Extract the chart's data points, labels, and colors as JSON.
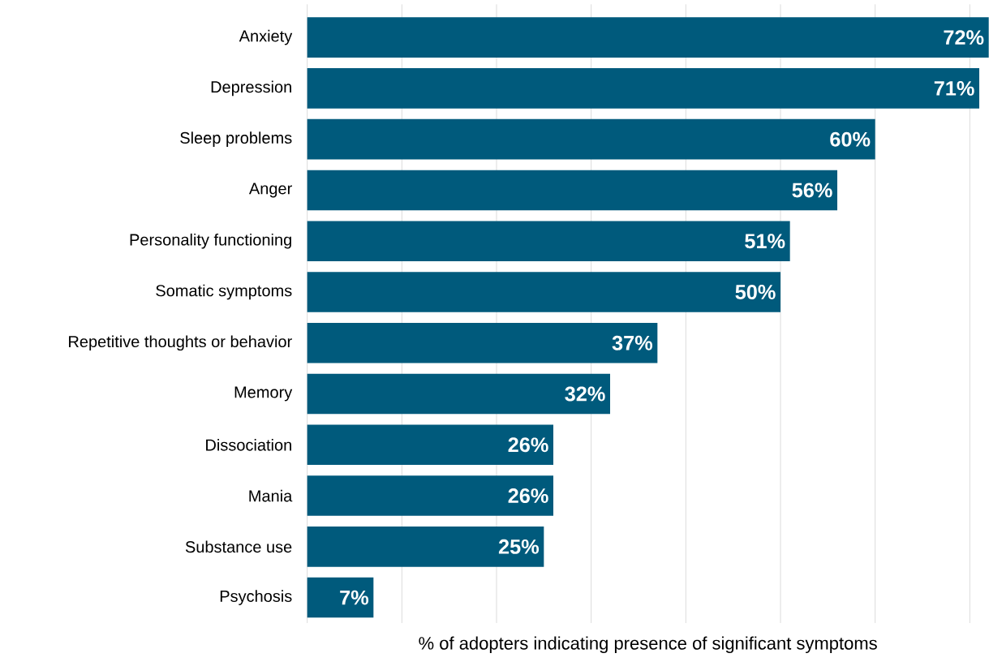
{
  "chart_data": {
    "type": "bar",
    "orientation": "horizontal",
    "xlabel": "% of adopters indicating presence of significant symptoms",
    "categories": [
      "Anxiety",
      "Depression",
      "Sleep problems",
      "Anger",
      "Personality functioning",
      "Somatic symptoms",
      "Repetitive thoughts or behavior",
      "Memory",
      "Dissociation",
      "Mania",
      "Substance use",
      "Psychosis"
    ],
    "values": [
      72,
      71,
      60,
      56,
      51,
      50,
      37,
      32,
      26,
      26,
      25,
      7
    ],
    "value_labels": [
      "72%",
      "71%",
      "60%",
      "56%",
      "51%",
      "50%",
      "37%",
      "32%",
      "26%",
      "26%",
      "25%",
      "7%"
    ],
    "color": "#005a7c",
    "xlim": [
      0,
      72
    ],
    "xticks": [
      {
        "value": 0,
        "label": null
      },
      {
        "value": 10,
        "label": null
      },
      {
        "value": 20,
        "label": null
      },
      {
        "value": 30,
        "label": null
      },
      {
        "value": 40,
        "label": null
      },
      {
        "value": 50,
        "label": null
      },
      {
        "value": 60,
        "label": null
      },
      {
        "value": 70,
        "label": null
      }
    ],
    "grid": "x",
    "tick_labels": "y"
  }
}
